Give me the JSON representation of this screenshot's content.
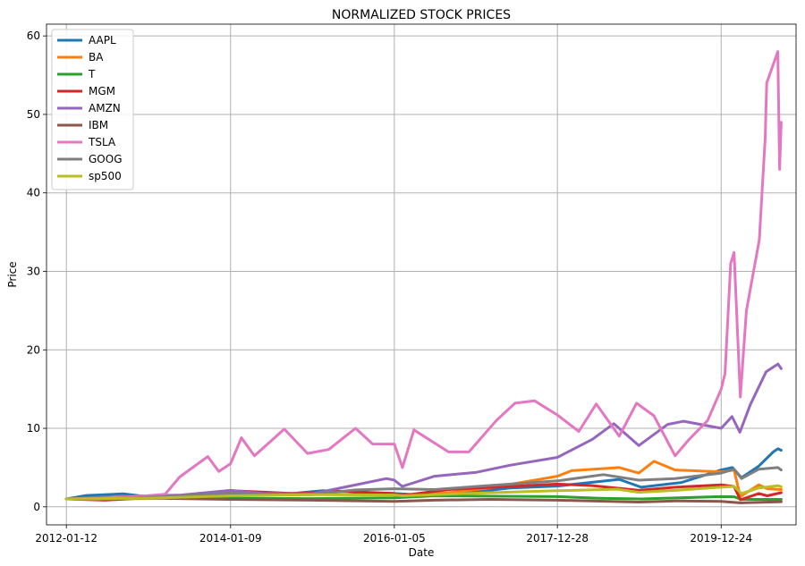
{
  "chart_data": {
    "type": "line",
    "title": "NORMALIZED STOCK PRICES",
    "xlabel": "Date",
    "ylabel": "Price",
    "ylim": [
      -2.3,
      61.5
    ],
    "yticks": [
      0,
      10,
      20,
      30,
      40,
      50,
      60
    ],
    "xlim": [
      "2011-10-16",
      "2020-11-20"
    ],
    "xticks": [
      "2012-01-12",
      "2014-01-09",
      "2016-01-05",
      "2017-12-28",
      "2019-12-24"
    ],
    "grid": true,
    "legend_position": "top-left",
    "series": [
      {
        "name": "AAPL",
        "color": "#1f77b4",
        "points": [
          [
            "2012-01-12",
            1.0
          ],
          [
            "2012-04-10",
            1.45
          ],
          [
            "2012-09-19",
            1.65
          ],
          [
            "2013-01-02",
            1.3
          ],
          [
            "2013-04-19",
            1.05
          ],
          [
            "2013-10-01",
            1.25
          ],
          [
            "2014-01-09",
            1.4
          ],
          [
            "2014-09-02",
            1.6
          ],
          [
            "2015-02-23",
            2.05
          ],
          [
            "2015-08-24",
            1.8
          ],
          [
            "2016-01-05",
            1.7
          ],
          [
            "2016-05-12",
            1.48
          ],
          [
            "2016-12-01",
            1.8
          ],
          [
            "2017-06-01",
            2.4
          ],
          [
            "2017-12-28",
            2.65
          ],
          [
            "2018-09-28",
            3.5
          ],
          [
            "2019-01-03",
            2.5
          ],
          [
            "2019-07-01",
            3.1
          ],
          [
            "2019-12-24",
            4.7
          ],
          [
            "2020-02-12",
            5.0
          ],
          [
            "2020-03-23",
            3.7
          ],
          [
            "2020-06-08",
            5.2
          ],
          [
            "2020-08-11",
            7.0
          ],
          [
            "2020-09-01",
            7.4
          ],
          [
            "2020-09-15",
            7.2
          ]
        ]
      },
      {
        "name": "BA",
        "color": "#ff7f0e",
        "points": [
          [
            "2012-01-12",
            1.0
          ],
          [
            "2012-07-01",
            1.0
          ],
          [
            "2013-01-02",
            1.05
          ],
          [
            "2013-06-03",
            1.3
          ],
          [
            "2014-01-09",
            1.75
          ],
          [
            "2014-07-01",
            1.7
          ],
          [
            "2015-01-05",
            1.75
          ],
          [
            "2015-07-01",
            1.95
          ],
          [
            "2016-01-05",
            1.6
          ],
          [
            "2016-02-11",
            1.45
          ],
          [
            "2016-09-01",
            1.8
          ],
          [
            "2017-03-01",
            2.4
          ],
          [
            "2017-12-28",
            3.9
          ],
          [
            "2018-03-01",
            4.6
          ],
          [
            "2018-09-28",
            5.0
          ],
          [
            "2018-12-24",
            4.3
          ],
          [
            "2019-03-01",
            5.8
          ],
          [
            "2019-06-03",
            4.7
          ],
          [
            "2019-12-24",
            4.45
          ],
          [
            "2020-02-19",
            4.7
          ],
          [
            "2020-03-18",
            1.3
          ],
          [
            "2020-06-08",
            2.8
          ],
          [
            "2020-07-15",
            2.3
          ],
          [
            "2020-09-15",
            2.2
          ]
        ]
      },
      {
        "name": "T",
        "color": "#2ca02c",
        "points": [
          [
            "2012-01-12",
            1.0
          ],
          [
            "2012-10-01",
            1.2
          ],
          [
            "2013-06-03",
            1.2
          ],
          [
            "2014-01-09",
            1.1
          ],
          [
            "2015-01-05",
            1.05
          ],
          [
            "2016-01-05",
            1.15
          ],
          [
            "2016-07-01",
            1.4
          ],
          [
            "2017-12-28",
            1.3
          ],
          [
            "2018-07-01",
            1.1
          ],
          [
            "2019-01-03",
            1.0
          ],
          [
            "2019-12-24",
            1.3
          ],
          [
            "2020-02-19",
            1.28
          ],
          [
            "2020-03-23",
            0.95
          ],
          [
            "2020-09-15",
            0.95
          ]
        ]
      },
      {
        "name": "MGM",
        "color": "#d62728",
        "points": [
          [
            "2012-01-12",
            1.0
          ],
          [
            "2012-07-01",
            0.85
          ],
          [
            "2013-01-02",
            1.15
          ],
          [
            "2013-09-03",
            1.6
          ],
          [
            "2014-01-09",
            2.05
          ],
          [
            "2014-10-15",
            1.7
          ],
          [
            "2015-05-01",
            2.0
          ],
          [
            "2016-01-05",
            1.7
          ],
          [
            "2016-02-11",
            1.45
          ],
          [
            "2016-09-01",
            2.2
          ],
          [
            "2017-12-28",
            2.9
          ],
          [
            "2018-06-01",
            2.7
          ],
          [
            "2018-12-24",
            2.1
          ],
          [
            "2019-06-03",
            2.5
          ],
          [
            "2019-12-24",
            2.8
          ],
          [
            "2020-02-19",
            2.6
          ],
          [
            "2020-03-18",
            0.9
          ],
          [
            "2020-06-08",
            1.7
          ],
          [
            "2020-07-15",
            1.4
          ],
          [
            "2020-09-15",
            1.8
          ]
        ]
      },
      {
        "name": "AMZN",
        "color": "#9467bd",
        "points": [
          [
            "2012-01-12",
            1.0
          ],
          [
            "2012-06-01",
            1.2
          ],
          [
            "2013-01-02",
            1.4
          ],
          [
            "2013-06-03",
            1.5
          ],
          [
            "2014-01-09",
            2.1
          ],
          [
            "2014-06-02",
            1.7
          ],
          [
            "2015-01-05",
            1.65
          ],
          [
            "2015-07-01",
            2.7
          ],
          [
            "2015-12-01",
            3.6
          ],
          [
            "2016-01-05",
            3.4
          ],
          [
            "2016-02-09",
            2.6
          ],
          [
            "2016-07-01",
            3.9
          ],
          [
            "2017-01-03",
            4.4
          ],
          [
            "2017-06-01",
            5.3
          ],
          [
            "2017-12-28",
            6.3
          ],
          [
            "2018-06-01",
            8.6
          ],
          [
            "2018-09-04",
            10.6
          ],
          [
            "2018-12-24",
            7.8
          ],
          [
            "2019-05-01",
            10.5
          ],
          [
            "2019-07-11",
            10.9
          ],
          [
            "2019-12-24",
            10.0
          ],
          [
            "2020-02-10",
            11.5
          ],
          [
            "2020-03-16",
            9.5
          ],
          [
            "2020-05-01",
            13.0
          ],
          [
            "2020-07-10",
            17.2
          ],
          [
            "2020-09-01",
            18.2
          ],
          [
            "2020-09-15",
            17.6
          ]
        ]
      },
      {
        "name": "IBM",
        "color": "#8c564b",
        "points": [
          [
            "2012-01-12",
            1.0
          ],
          [
            "2013-03-01",
            1.1
          ],
          [
            "2014-01-09",
            0.95
          ],
          [
            "2015-01-05",
            0.85
          ],
          [
            "2016-01-05",
            0.7
          ],
          [
            "2016-07-01",
            0.85
          ],
          [
            "2017-03-01",
            0.95
          ],
          [
            "2017-12-28",
            0.85
          ],
          [
            "2018-12-24",
            0.6
          ],
          [
            "2019-06-03",
            0.75
          ],
          [
            "2019-12-24",
            0.7
          ],
          [
            "2020-03-18",
            0.5
          ],
          [
            "2020-09-15",
            0.65
          ]
        ]
      },
      {
        "name": "TSLA",
        "color": "#e377c2",
        "points": [
          [
            "2012-01-12",
            1.0
          ],
          [
            "2012-06-01",
            1.1
          ],
          [
            "2013-01-02",
            1.4
          ],
          [
            "2013-03-25",
            1.6
          ],
          [
            "2013-05-28",
            3.8
          ],
          [
            "2013-09-30",
            6.4
          ],
          [
            "2013-11-18",
            4.5
          ],
          [
            "2014-01-09",
            5.5
          ],
          [
            "2014-02-26",
            8.8
          ],
          [
            "2014-04-25",
            6.5
          ],
          [
            "2014-09-04",
            9.9
          ],
          [
            "2014-12-16",
            6.8
          ],
          [
            "2015-03-20",
            7.3
          ],
          [
            "2015-07-17",
            10.0
          ],
          [
            "2015-10-01",
            8.0
          ],
          [
            "2016-01-05",
            8.0
          ],
          [
            "2016-02-10",
            5.0
          ],
          [
            "2016-04-01",
            9.8
          ],
          [
            "2016-09-01",
            7.0
          ],
          [
            "2016-12-01",
            7.0
          ],
          [
            "2017-04-01",
            11.0
          ],
          [
            "2017-06-23",
            13.2
          ],
          [
            "2017-09-18",
            13.5
          ],
          [
            "2017-12-28",
            11.7
          ],
          [
            "2018-04-02",
            9.6
          ],
          [
            "2018-06-18",
            13.1
          ],
          [
            "2018-09-28",
            9.0
          ],
          [
            "2018-12-14",
            13.2
          ],
          [
            "2019-03-01",
            11.6
          ],
          [
            "2019-06-03",
            6.5
          ],
          [
            "2019-08-01",
            8.5
          ],
          [
            "2019-10-25",
            11.0
          ],
          [
            "2019-12-24",
            15.0
          ],
          [
            "2020-01-10",
            17.0
          ],
          [
            "2020-02-04",
            31.0
          ],
          [
            "2020-02-19",
            32.4
          ],
          [
            "2020-03-18",
            14.0
          ],
          [
            "2020-04-14",
            25.0
          ],
          [
            "2020-06-10",
            34.0
          ],
          [
            "2020-07-06",
            47.0
          ],
          [
            "2020-07-13",
            54.0
          ],
          [
            "2020-08-31",
            58.0
          ],
          [
            "2020-09-08",
            43.0
          ],
          [
            "2020-09-15",
            49.0
          ]
        ]
      },
      {
        "name": "GOOG",
        "color": "#7f7f7f",
        "points": [
          [
            "2012-01-12",
            1.0
          ],
          [
            "2012-06-01",
            0.95
          ],
          [
            "2013-01-02",
            1.2
          ],
          [
            "2013-06-03",
            1.45
          ],
          [
            "2014-01-09",
            1.75
          ],
          [
            "2014-06-02",
            1.6
          ],
          [
            "2015-01-05",
            1.55
          ],
          [
            "2015-07-17",
            2.15
          ],
          [
            "2016-01-05",
            2.3
          ],
          [
            "2016-07-01",
            2.2
          ],
          [
            "2017-01-03",
            2.6
          ],
          [
            "2017-12-28",
            3.3
          ],
          [
            "2018-07-20",
            4.1
          ],
          [
            "2018-12-24",
            3.4
          ],
          [
            "2019-06-03",
            3.6
          ],
          [
            "2019-12-24",
            4.3
          ],
          [
            "2020-02-19",
            4.8
          ],
          [
            "2020-03-23",
            3.6
          ],
          [
            "2020-06-08",
            4.8
          ],
          [
            "2020-08-31",
            5.0
          ],
          [
            "2020-09-15",
            4.7
          ]
        ]
      },
      {
        "name": "sp500",
        "color": "#bcbd22",
        "points": [
          [
            "2012-01-12",
            1.0
          ],
          [
            "2013-01-02",
            1.1
          ],
          [
            "2014-01-09",
            1.4
          ],
          [
            "2015-01-05",
            1.55
          ],
          [
            "2016-01-05",
            1.5
          ],
          [
            "2016-02-11",
            1.4
          ],
          [
            "2017-01-03",
            1.75
          ],
          [
            "2017-12-28",
            2.05
          ],
          [
            "2018-09-20",
            2.25
          ],
          [
            "2018-12-24",
            1.85
          ],
          [
            "2019-06-03",
            2.1
          ],
          [
            "2019-12-24",
            2.5
          ],
          [
            "2020-02-19",
            2.6
          ],
          [
            "2020-03-23",
            1.7
          ],
          [
            "2020-06-08",
            2.4
          ],
          [
            "2020-09-01",
            2.7
          ],
          [
            "2020-09-15",
            2.55
          ]
        ]
      }
    ]
  }
}
